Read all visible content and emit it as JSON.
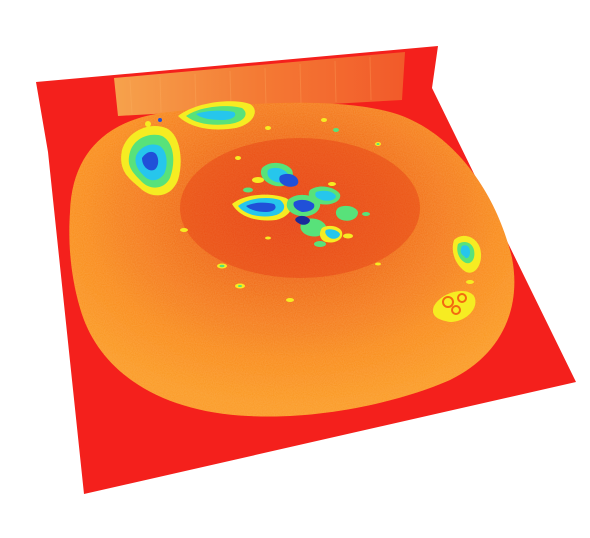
{
  "image": {
    "kind": "3d-surface-heatmap-render",
    "colormap": "jet",
    "colors": {
      "background": "#ffffff",
      "base_plane": "#f4201c",
      "wall": "#f36a32",
      "dome_light": "#fb8a1a",
      "dome_dark": "#ee5a14",
      "yellow": "#f6ec22",
      "green": "#58e27a",
      "cyan": "#26c6ec",
      "blue": "#2050d8",
      "navy": "#1a2a9a"
    }
  }
}
